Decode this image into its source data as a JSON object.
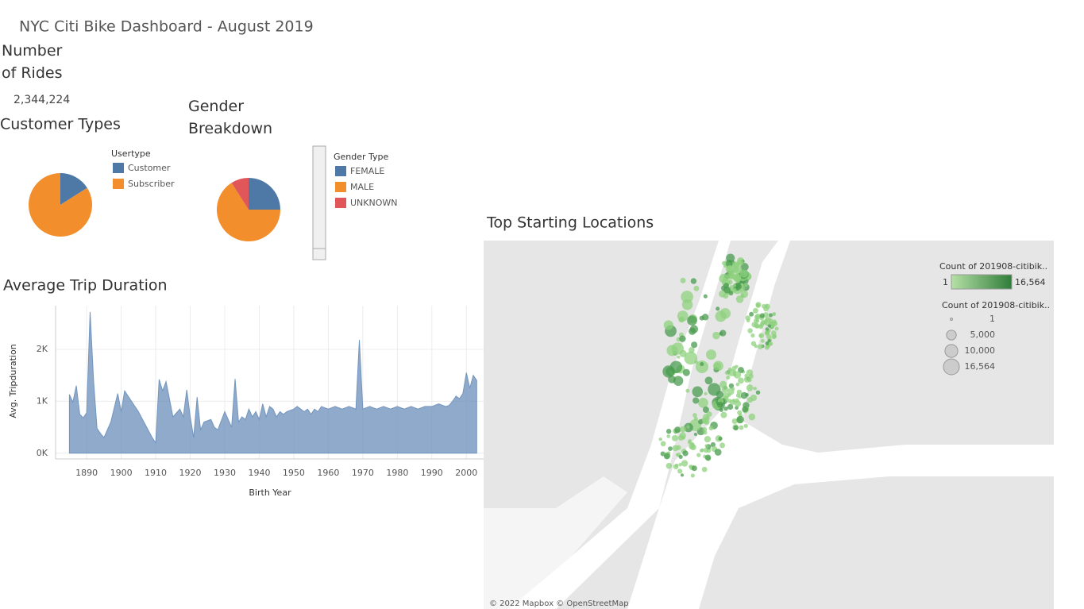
{
  "title": "NYC Citi Bike Dashboard - August 2019",
  "rides": {
    "title": "Number of Rides",
    "value": 2344224,
    "value_label": "2,344,224"
  },
  "chart_data": [
    {
      "type": "pie",
      "title": "Customer Types",
      "legend_title": "Usertype",
      "categories": [
        "Customer",
        "Subscriber"
      ],
      "values": [
        16,
        84
      ],
      "colors": [
        "#4e79a7",
        "#f28e2b"
      ]
    },
    {
      "type": "pie",
      "title": "Gender Breakdown",
      "legend_title": "Gender Type",
      "categories": [
        "FEMALE",
        "MALE",
        "UNKNOWN"
      ],
      "values": [
        25,
        66,
        9
      ],
      "colors": [
        "#4e79a7",
        "#f28e2b",
        "#e15759"
      ]
    },
    {
      "type": "area",
      "title": "Average Trip Duration",
      "x_label": "Birth Year",
      "y_label": "Avg. Tripduration",
      "color": "#7395be",
      "grid": true,
      "x": [
        1885,
        1886,
        1887,
        1888,
        1889,
        1890,
        1891,
        1892,
        1893,
        1894,
        1895,
        1897,
        1899,
        1900,
        1901,
        1905,
        1909,
        1910,
        1911,
        1912,
        1913,
        1915,
        1917,
        1918,
        1919,
        1920,
        1921,
        1922,
        1923,
        1924,
        1926,
        1927,
        1928,
        1930,
        1931,
        1932,
        1933,
        1934,
        1935,
        1936,
        1937,
        1938,
        1939,
        1940,
        1941,
        1942,
        1943,
        1944,
        1945,
        1946,
        1947,
        1948,
        1950,
        1951,
        1952,
        1953,
        1954,
        1955,
        1956,
        1957,
        1958,
        1960,
        1962,
        1964,
        1966,
        1968,
        1969,
        1970,
        1972,
        1974,
        1976,
        1978,
        1980,
        1982,
        1984,
        1986,
        1988,
        1990,
        1992,
        1994,
        1995,
        1996,
        1997,
        1998,
        1999,
        2000,
        2001,
        2002,
        2003
      ],
      "values": [
        1130,
        980,
        1300,
        750,
        680,
        780,
        2720,
        1400,
        480,
        380,
        300,
        600,
        1150,
        800,
        1200,
        800,
        300,
        200,
        1420,
        1200,
        1380,
        700,
        850,
        700,
        1220,
        700,
        300,
        1080,
        450,
        600,
        650,
        500,
        450,
        800,
        650,
        500,
        1430,
        600,
        700,
        650,
        850,
        700,
        800,
        650,
        950,
        700,
        900,
        850,
        700,
        800,
        750,
        800,
        850,
        900,
        850,
        800,
        850,
        750,
        850,
        800,
        900,
        850,
        900,
        850,
        900,
        850,
        2180,
        850,
        900,
        850,
        900,
        850,
        900,
        850,
        900,
        850,
        900,
        900,
        950,
        900,
        920,
        1000,
        1100,
        1050,
        1150,
        1550,
        1250,
        1500,
        1400
      ],
      "xlim": [
        1881,
        2005
      ],
      "xticks": [
        1890,
        1900,
        1910,
        1920,
        1930,
        1940,
        1950,
        1960,
        1970,
        1980,
        1990,
        2000
      ],
      "ylim": [
        -110,
        2840
      ],
      "yticks": [
        {
          "value": 0,
          "label": "0K"
        },
        {
          "value": 1000,
          "label": "1K"
        },
        {
          "value": 2000,
          "label": "2K"
        }
      ]
    },
    {
      "type": "map",
      "title": "Top Starting Locations",
      "color_legend_title": "Count of 201908-citibik..",
      "size_legend_title": "Count of 201908-citibik..",
      "color_range": [
        1,
        {
          "value": 16564,
          "label": "16,564"
        }
      ],
      "colors": [
        "#b5e0a6",
        "#2f7d3a"
      ],
      "size_legend": [
        1,
        {
          "value": 5000,
          "label": "5,000"
        },
        {
          "value": 10000,
          "label": "10,000"
        },
        {
          "value": 16564,
          "label": "16,564"
        }
      ],
      "attribution": "© 2022 Mapbox © OpenStreetMap"
    }
  ]
}
